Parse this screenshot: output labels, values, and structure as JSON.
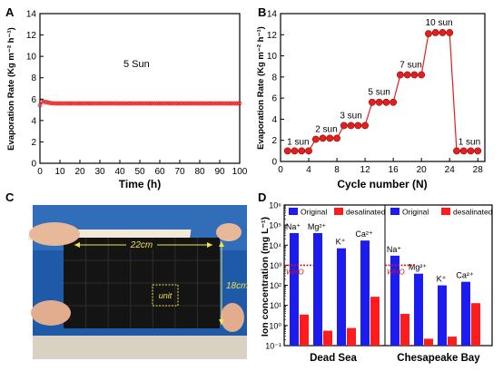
{
  "panels": {
    "a": {
      "letter": "A"
    },
    "b": {
      "letter": "B"
    },
    "c": {
      "letter": "C"
    },
    "d": {
      "letter": "D"
    }
  },
  "photo": {
    "width_label": "22cm",
    "height_label": "18cm",
    "unit_label": "unit"
  },
  "chart_data": [
    {
      "type": "line",
      "xlabel": "Time (h)",
      "ylabel": "Evaporation Rate (Kg m⁻² h⁻¹)",
      "xlim": [
        0,
        100
      ],
      "ylim": [
        0,
        14
      ],
      "xticks": [
        "0",
        "10",
        "20",
        "30",
        "40",
        "50",
        "60",
        "70",
        "80",
        "90",
        "100"
      ],
      "yticks": [
        "0",
        "2",
        "4",
        "6",
        "8",
        "10",
        "12",
        "14"
      ],
      "annotation": "5 Sun",
      "color": "#e41f1f",
      "series": [
        {
          "x": [
            0,
            1,
            2,
            3,
            4,
            5,
            6,
            7,
            8,
            9,
            10,
            11,
            12,
            13,
            14,
            15,
            16,
            17,
            18,
            19,
            20,
            21,
            22,
            23,
            24,
            25,
            26,
            27,
            28,
            29,
            30,
            31,
            32,
            33,
            34,
            35,
            36,
            37,
            38,
            39,
            40,
            41,
            42,
            43,
            44,
            45,
            46,
            47,
            48,
            49,
            50,
            51,
            52,
            53,
            54,
            55,
            56,
            57,
            58,
            59,
            60,
            61,
            62,
            63,
            64,
            65,
            66,
            67,
            68,
            69,
            70,
            71,
            72,
            73,
            74,
            75,
            76,
            77,
            78,
            79,
            80,
            81,
            82,
            83,
            84,
            85,
            86,
            87,
            88,
            89,
            90,
            91,
            92,
            93,
            94,
            95,
            96,
            97,
            98,
            99,
            100
          ],
          "y": [
            5.4,
            5.75,
            5.75,
            5.72,
            5.68,
            5.65,
            5.62,
            5.6,
            5.6,
            5.6,
            5.6,
            5.6,
            5.6,
            5.6,
            5.6,
            5.6,
            5.6,
            5.6,
            5.6,
            5.6,
            5.6,
            5.6,
            5.6,
            5.6,
            5.6,
            5.6,
            5.6,
            5.6,
            5.6,
            5.6,
            5.6,
            5.6,
            5.6,
            5.6,
            5.6,
            5.6,
            5.6,
            5.6,
            5.6,
            5.6,
            5.6,
            5.6,
            5.6,
            5.6,
            5.6,
            5.6,
            5.6,
            5.6,
            5.6,
            5.6,
            5.6,
            5.6,
            5.6,
            5.6,
            5.6,
            5.6,
            5.6,
            5.6,
            5.6,
            5.6,
            5.6,
            5.6,
            5.6,
            5.6,
            5.6,
            5.6,
            5.6,
            5.6,
            5.6,
            5.6,
            5.6,
            5.6,
            5.6,
            5.6,
            5.6,
            5.6,
            5.6,
            5.6,
            5.6,
            5.6,
            5.6,
            5.6,
            5.6,
            5.6,
            5.6,
            5.6,
            5.6,
            5.6,
            5.6,
            5.6,
            5.6,
            5.6,
            5.6,
            5.6,
            5.6,
            5.6,
            5.6,
            5.6,
            5.6,
            5.6,
            5.6
          ]
        }
      ]
    },
    {
      "type": "line",
      "xlabel": "Cycle number (N)",
      "ylabel": "Evaporation Rate (Kg m⁻² h⁻¹)",
      "xlim": [
        0,
        29
      ],
      "ylim": [
        0,
        14
      ],
      "xticks": [
        "0",
        "4",
        "8",
        "12",
        "16",
        "20",
        "24",
        "28"
      ],
      "yticks": [
        "0",
        "2",
        "4",
        "6",
        "8",
        "10",
        "12",
        "14"
      ],
      "color": "#e41f1f",
      "series": [
        {
          "x": [
            1,
            2,
            3,
            4,
            5,
            6,
            7,
            8,
            9,
            10,
            11,
            12,
            13,
            14,
            15,
            16,
            17,
            18,
            19,
            20,
            21,
            22,
            23,
            24,
            25,
            26,
            27,
            28
          ],
          "y": [
            1.0,
            1.0,
            1.0,
            1.0,
            2.1,
            2.2,
            2.2,
            2.2,
            3.4,
            3.4,
            3.4,
            3.4,
            5.6,
            5.6,
            5.6,
            5.6,
            8.2,
            8.2,
            8.2,
            8.2,
            12.1,
            12.2,
            12.2,
            12.2,
            1.0,
            1.0,
            1.0,
            1.0
          ]
        }
      ],
      "annotations": [
        {
          "text": "1 sun",
          "x": 2.5,
          "y": 1.6
        },
        {
          "text": "2 sun",
          "x": 6.5,
          "y": 2.8
        },
        {
          "text": "3 sun",
          "x": 10.0,
          "y": 4.1
        },
        {
          "text": "5 sun",
          "x": 14.0,
          "y": 6.3
        },
        {
          "text": "7 sun",
          "x": 18.5,
          "y": 8.9
        },
        {
          "text": "10 sun",
          "x": 22.5,
          "y": 12.9
        },
        {
          "text": "1 sun",
          "x": 26.8,
          "y": 1.6
        }
      ]
    },
    {
      "type": "bar",
      "ylabel": "Ion concentration (mg L⁻¹)",
      "yscale": "log",
      "ylim": [
        0.1,
        1000000
      ],
      "yticks": [
        "10⁻¹",
        "10⁰",
        "10¹",
        "10²",
        "10³",
        "10⁴",
        "10⁵",
        "10⁶"
      ],
      "legend": [
        {
          "name": "Original",
          "color": "#1c1cf0"
        },
        {
          "name": "desalinated",
          "color": "#ff1c1c"
        }
      ],
      "reference": {
        "label": "WHO",
        "value": 1000,
        "color": "#d4141a"
      },
      "groups": [
        {
          "name": "Dead Sea",
          "categories": [
            "Na⁺",
            "Mg²⁺",
            "K⁺",
            "Ca²⁺"
          ],
          "original": [
            40000,
            40000,
            7000,
            17000
          ],
          "desalinated": [
            3.5,
            0.55,
            0.75,
            27
          ]
        },
        {
          "name": "Chesapeake Bay",
          "categories": [
            "Na⁺",
            "Mg²⁺",
            "K⁺",
            "Ca²⁺"
          ],
          "original": [
            3000,
            380,
            100,
            150
          ],
          "desalinated": [
            3.8,
            0.22,
            0.28,
            13
          ]
        }
      ]
    }
  ]
}
